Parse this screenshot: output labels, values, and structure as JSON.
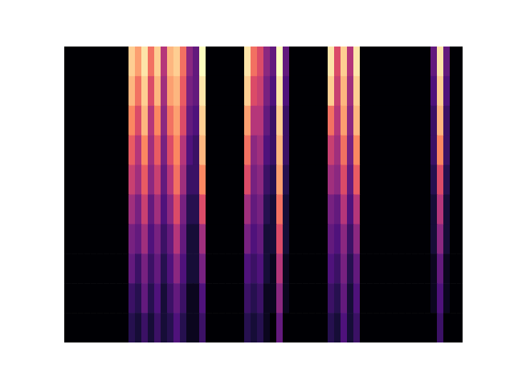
{
  "chart_data": {
    "type": "heatmap",
    "xlim": [
      0,
      62
    ],
    "ylim": [
      0,
      10
    ],
    "clim": [
      0,
      1
    ],
    "tick_labels": false,
    "cells": [
      [
        0,
        0,
        0,
        0,
        0,
        0,
        0,
        0,
        0,
        0,
        0.9,
        0.8,
        0.95,
        0.7,
        0.9,
        0.5,
        0.85,
        0.9,
        0.7,
        0.4,
        0.3,
        1.0,
        0,
        0,
        0,
        0,
        0,
        0,
        0.95,
        0.7,
        0.6,
        0.4,
        0.3,
        1.0,
        0.3,
        0,
        0,
        0,
        0,
        0,
        0,
        0.95,
        0.6,
        0.9,
        0.5,
        0.95,
        0,
        0,
        0,
        0,
        0,
        0,
        0,
        0,
        0,
        0,
        0,
        0.3,
        0.95,
        0.3,
        0,
        0
      ],
      [
        0,
        0,
        0,
        0,
        0,
        0,
        0,
        0,
        0,
        0,
        0.85,
        0.7,
        0.9,
        0.6,
        0.85,
        0.45,
        0.8,
        0.85,
        0.65,
        0.35,
        0.3,
        0.95,
        0,
        0,
        0,
        0,
        0,
        0,
        0.9,
        0.6,
        0.55,
        0.35,
        0.25,
        0.95,
        0.25,
        0,
        0,
        0,
        0,
        0,
        0,
        0.9,
        0.55,
        0.85,
        0.45,
        0.9,
        0,
        0,
        0,
        0,
        0,
        0,
        0,
        0,
        0,
        0,
        0,
        0.25,
        0.9,
        0.25,
        0,
        0
      ],
      [
        0,
        0,
        0,
        0,
        0,
        0,
        0,
        0,
        0,
        0,
        0.75,
        0.6,
        0.85,
        0.5,
        0.75,
        0.4,
        0.7,
        0.8,
        0.6,
        0.3,
        0.25,
        0.9,
        0,
        0,
        0,
        0,
        0,
        0,
        0.8,
        0.5,
        0.5,
        0.3,
        0.2,
        0.9,
        0.2,
        0,
        0,
        0,
        0,
        0,
        0,
        0.7,
        0.5,
        0.8,
        0.4,
        0.85,
        0,
        0,
        0,
        0,
        0,
        0,
        0,
        0,
        0,
        0,
        0,
        0.2,
        0.85,
        0.2,
        0,
        0
      ],
      [
        0,
        0,
        0,
        0,
        0,
        0,
        0,
        0,
        0,
        0,
        0.65,
        0.5,
        0.75,
        0.45,
        0.65,
        0.35,
        0.6,
        0.75,
        0.5,
        0.25,
        0.2,
        0.85,
        0,
        0,
        0,
        0,
        0,
        0,
        0.7,
        0.4,
        0.45,
        0.25,
        0.2,
        0.85,
        0.2,
        0,
        0,
        0,
        0,
        0,
        0,
        0.55,
        0.45,
        0.7,
        0.35,
        0.75,
        0,
        0,
        0,
        0,
        0,
        0,
        0,
        0,
        0,
        0,
        0,
        0.2,
        0.75,
        0.2,
        0,
        0
      ],
      [
        0,
        0,
        0,
        0,
        0,
        0,
        0,
        0,
        0,
        0,
        0.55,
        0.45,
        0.65,
        0.4,
        0.55,
        0.3,
        0.5,
        0.7,
        0.45,
        0.2,
        0.2,
        0.75,
        0,
        0,
        0,
        0,
        0,
        0,
        0.6,
        0.35,
        0.4,
        0.2,
        0.15,
        0.8,
        0.15,
        0,
        0,
        0,
        0,
        0,
        0,
        0.45,
        0.4,
        0.6,
        0.3,
        0.65,
        0,
        0,
        0,
        0,
        0,
        0,
        0,
        0,
        0,
        0,
        0,
        0.15,
        0.6,
        0.15,
        0,
        0
      ],
      [
        0,
        0,
        0,
        0,
        0,
        0,
        0,
        0,
        0,
        0,
        0.45,
        0.35,
        0.55,
        0.3,
        0.45,
        0.25,
        0.4,
        0.6,
        0.35,
        0.15,
        0.15,
        0.6,
        0,
        0,
        0,
        0,
        0,
        0,
        0.45,
        0.3,
        0.35,
        0.15,
        0.1,
        0.7,
        0.1,
        0,
        0,
        0,
        0,
        0,
        0,
        0.35,
        0.3,
        0.5,
        0.25,
        0.5,
        0,
        0,
        0,
        0,
        0,
        0,
        0,
        0,
        0,
        0,
        0,
        0.1,
        0.5,
        0.1,
        0,
        0
      ],
      [
        0,
        0,
        0,
        0,
        0,
        0,
        0,
        0,
        0,
        0,
        0.35,
        0.3,
        0.45,
        0.25,
        0.35,
        0.2,
        0.3,
        0.5,
        0.3,
        0.1,
        0.1,
        0.45,
        0,
        0,
        0,
        0,
        0,
        0,
        0.35,
        0.25,
        0.3,
        0.1,
        0.1,
        0.6,
        0.1,
        0,
        0,
        0,
        0,
        0,
        0,
        0.3,
        0.25,
        0.4,
        0.2,
        0.4,
        0,
        0,
        0,
        0,
        0,
        0,
        0,
        0,
        0,
        0,
        0,
        0.1,
        0.4,
        0.1,
        0,
        0
      ],
      [
        0,
        0,
        0,
        0,
        0,
        0,
        0,
        0,
        0,
        0,
        0.3,
        0.2,
        0.35,
        0.2,
        0.3,
        0.15,
        0.25,
        0.4,
        0.25,
        0.1,
        0.1,
        0.35,
        0,
        0,
        0,
        0,
        0,
        0,
        0.25,
        0.2,
        0.25,
        0.1,
        0.05,
        0.5,
        0.05,
        0,
        0,
        0,
        0,
        0,
        0,
        0.25,
        0.2,
        0.35,
        0.15,
        0.3,
        0,
        0,
        0,
        0,
        0,
        0,
        0,
        0,
        0,
        0,
        0,
        0.05,
        0.3,
        0.05,
        0,
        0
      ],
      [
        0,
        0,
        0,
        0,
        0,
        0,
        0,
        0,
        0,
        0,
        0.2,
        0.15,
        0.3,
        0.15,
        0.25,
        0.1,
        0.2,
        0.3,
        0.2,
        0.05,
        0.05,
        0.25,
        0,
        0,
        0,
        0,
        0,
        0,
        0.2,
        0.15,
        0.2,
        0.05,
        0.05,
        0.4,
        0.05,
        0,
        0,
        0,
        0,
        0,
        0,
        0.2,
        0.15,
        0.3,
        0.1,
        0.25,
        0,
        0,
        0,
        0,
        0,
        0,
        0,
        0,
        0,
        0,
        0,
        0.05,
        0.25,
        0.05,
        0,
        0
      ],
      [
        0,
        0,
        0,
        0,
        0,
        0,
        0,
        0,
        0,
        0,
        0.15,
        0.1,
        0.2,
        0.1,
        0.2,
        0.1,
        0.15,
        0.25,
        0.15,
        0.05,
        0.05,
        0.2,
        0,
        0,
        0,
        0,
        0,
        0,
        0.15,
        0.1,
        0.15,
        0.05,
        0,
        0.3,
        0,
        0,
        0,
        0,
        0,
        0,
        0,
        0.15,
        0.1,
        0.25,
        0.1,
        0.2,
        0,
        0,
        0,
        0,
        0,
        0,
        0,
        0,
        0,
        0,
        0,
        0,
        0.2,
        0,
        0,
        0
      ]
    ]
  }
}
